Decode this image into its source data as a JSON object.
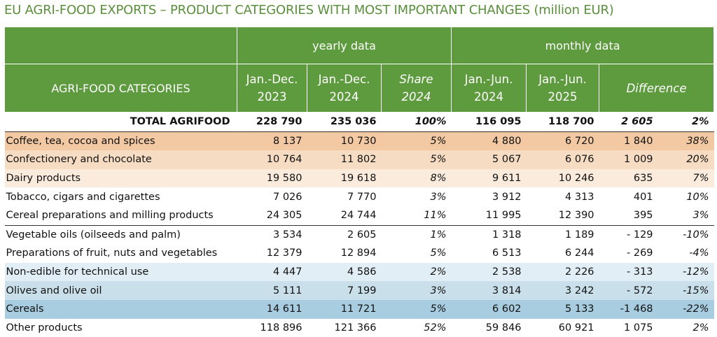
{
  "title": "EU AGRI-FOOD EXPORTS – PRODUCT CATEGORIES WITH MOST IMPORTANT CHANGES (million EUR)",
  "header": {
    "group_yearly": "yearly data",
    "group_monthly": "monthly data",
    "categories_label": "AGRI-FOOD CATEGORIES",
    "col1": [
      "Jan.-Dec.",
      "2023"
    ],
    "col2": [
      "Jan.-Dec.",
      "2024"
    ],
    "col3": [
      "Share",
      "2024"
    ],
    "col4": [
      "Jan.-Jun.",
      "2024"
    ],
    "col5": [
      "Jan.-Jun.",
      "2025"
    ],
    "col6": "Difference"
  },
  "total": [
    "TOTAL AGRIFOOD",
    "228 790",
    "235 036",
    "100%",
    "116 095",
    "118 700",
    "2 605",
    "2%"
  ],
  "rows": [
    [
      "Coffee, tea, cocoa and spices",
      "8 137",
      "10 730",
      "5%",
      "4 880",
      "6 720",
      "1 840",
      "38%"
    ],
    [
      "Confectionery and chocolate",
      "10 764",
      "11 802",
      "5%",
      "5 067",
      "6 076",
      "1 009",
      "20%"
    ],
    [
      "Dairy products",
      "19 580",
      "19 618",
      "8%",
      "9 611",
      "10 246",
      "635",
      "7%"
    ],
    [
      "Tobacco, cigars and cigarettes",
      "7 026",
      "7 770",
      "3%",
      "3 912",
      "4 313",
      "401",
      "10%"
    ],
    [
      "Cereal preparations and milling products",
      "24 305",
      "24 744",
      "11%",
      "11 995",
      "12 390",
      "395",
      "3%"
    ],
    [
      "Vegetable oils (oilseeds and palm)",
      "3 534",
      "2 605",
      "1%",
      "1 318",
      "1 189",
      "- 129",
      "-10%"
    ],
    [
      "Preparations of fruit, nuts and vegetables",
      "12 379",
      "12 894",
      "5%",
      "6 513",
      "6 244",
      "- 269",
      "-4%"
    ],
    [
      "Non-edible for technical use",
      "4 447",
      "4 586",
      "2%",
      "2 538",
      "2 226",
      "- 313",
      "-12%"
    ],
    [
      "Olives and olive oil",
      "5 111",
      "7 199",
      "3%",
      "3 814",
      "3 242",
      "- 572",
      "-15%"
    ],
    [
      "Cereals",
      "14 611",
      "11 721",
      "5%",
      "6 602",
      "5 133",
      "-1 468",
      "-22%"
    ],
    [
      "Other products",
      "118 896",
      "121 366",
      "52%",
      "59 846",
      "60 921",
      "1 075",
      "2%"
    ]
  ]
}
